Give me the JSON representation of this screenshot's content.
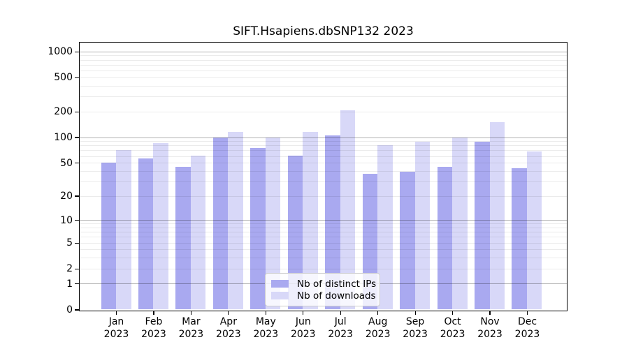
{
  "chart_data": {
    "type": "bar",
    "title": "SIFT.Hsapiens.dbSNP132 2023",
    "categories": [
      "Jan",
      "Feb",
      "Mar",
      "Apr",
      "May",
      "Jun",
      "Jul",
      "Aug",
      "Sep",
      "Oct",
      "Nov",
      "Dec"
    ],
    "year": "2023",
    "series": [
      {
        "name": "Nb of distinct IPs",
        "color": "#a9a9f0",
        "values": [
          50,
          56,
          45,
          100,
          74,
          61,
          104,
          37,
          39,
          45,
          88,
          43
        ]
      },
      {
        "name": "Nb of downloads",
        "color": "#d8d8f8",
        "values": [
          70,
          85,
          61,
          115,
          100,
          116,
          205,
          80,
          88,
          100,
          150,
          68
        ]
      }
    ],
    "yscale": "log10(1+x)",
    "ylim": [
      0,
      1270
    ],
    "yticks": [
      1000,
      500,
      200,
      100,
      50,
      20,
      10,
      5,
      2,
      1,
      0
    ],
    "grid": {
      "major": [
        1,
        10,
        100,
        1000
      ],
      "minor": [
        2,
        3,
        4,
        5,
        6,
        7,
        8,
        9,
        20,
        30,
        40,
        50,
        60,
        70,
        80,
        90,
        200,
        300,
        400,
        500,
        600,
        700,
        800,
        900
      ]
    },
    "legend_position": "bottom-center",
    "xlabel": "",
    "ylabel": ""
  }
}
